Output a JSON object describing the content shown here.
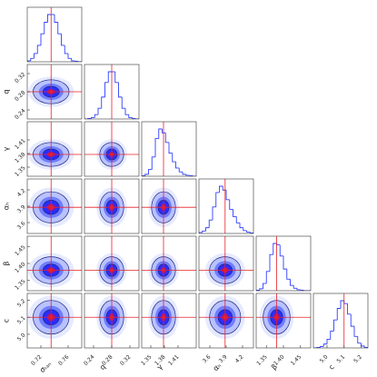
{
  "chart_data": {
    "type": "corner",
    "truth_color": "#e8202a",
    "hist_color": "#3040ff",
    "params": [
      {
        "name": "σₜₐₙ",
        "truth": 0.735,
        "sd": 0.012,
        "xlim": [
          0.7,
          0.78
        ],
        "ticks": [
          0.72,
          0.76
        ],
        "bins": [
          0.7,
          0.705,
          0.71,
          0.715,
          0.72,
          0.725,
          0.73,
          0.735,
          0.74,
          0.745,
          0.75,
          0.755,
          0.76,
          0.765,
          0.77,
          0.775,
          0.78
        ],
        "counts": [
          2,
          7,
          17,
          34,
          58,
          82,
          98,
          98,
          82,
          58,
          34,
          17,
          7,
          2,
          1,
          0
        ]
      },
      {
        "name": "q",
        "truth": 0.28,
        "sd": 0.012,
        "xlim": [
          0.22,
          0.34
        ],
        "ticks": [
          0.24,
          0.28,
          0.32
        ],
        "bins": [
          0.22,
          0.2275,
          0.235,
          0.2425,
          0.25,
          0.2575,
          0.265,
          0.2725,
          0.28,
          0.2875,
          0.295,
          0.3025,
          0.31,
          0.3175,
          0.325,
          0.3325,
          0.34
        ],
        "counts": [
          0,
          1,
          3,
          9,
          22,
          45,
          75,
          97,
          97,
          75,
          45,
          22,
          9,
          3,
          1,
          0
        ]
      },
      {
        "name": "γ",
        "truth": 1.378,
        "sd": 0.012,
        "xlim": [
          1.33,
          1.45
        ],
        "ticks": [
          1.35,
          1.38,
          1.41
        ],
        "bins": [
          1.33,
          1.3375,
          1.345,
          1.3525,
          1.36,
          1.3675,
          1.375,
          1.3825,
          1.39,
          1.3975,
          1.405,
          1.4125,
          1.42,
          1.4275,
          1.435,
          1.4425,
          1.45
        ],
        "counts": [
          1,
          4,
          14,
          40,
          78,
          98,
          90,
          70,
          48,
          30,
          17,
          9,
          4,
          2,
          1,
          0
        ]
      },
      {
        "name": "αₕ",
        "truth": 3.88,
        "sd": 0.13,
        "xlim": [
          3.4,
          4.4
        ],
        "ticks": [
          3.6,
          3.9,
          4.2
        ],
        "bins": [
          3.4,
          3.4625,
          3.525,
          3.5875,
          3.65,
          3.7125,
          3.775,
          3.8375,
          3.9,
          3.9625,
          4.025,
          4.0875,
          4.15,
          4.2125,
          4.275,
          4.3375,
          4.4
        ],
        "counts": [
          2,
          5,
          12,
          28,
          55,
          85,
          98,
          90,
          70,
          50,
          35,
          22,
          12,
          6,
          3,
          1
        ]
      },
      {
        "name": "β",
        "truth": 1.38,
        "sd": 0.018,
        "xlim": [
          1.32,
          1.48
        ],
        "ticks": [
          1.35,
          {
            "value": 1.4,
            "label": "1.40"
          },
          1.45
        ],
        "bins": [
          1.32,
          1.33,
          1.34,
          1.35,
          1.36,
          1.37,
          1.38,
          1.39,
          1.4,
          1.41,
          1.42,
          1.43,
          1.44,
          1.45,
          1.46,
          1.47,
          1.48
        ],
        "counts": [
          1,
          4,
          15,
          40,
          75,
          98,
          95,
          72,
          45,
          24,
          11,
          5,
          2,
          1,
          0,
          0
        ]
      },
      {
        "name": "c",
        "truth": 5.1,
        "sd": 0.045,
        "xlim": [
          4.92,
          5.24
        ],
        "ticks": [
          {
            "value": 5.0,
            "label": "5.0"
          },
          5.1,
          5.2
        ],
        "bins": [
          4.92,
          4.94,
          4.96,
          4.98,
          5.0,
          5.02,
          5.04,
          5.06,
          5.08,
          5.1,
          5.12,
          5.14,
          5.16,
          5.18,
          5.2,
          5.22,
          5.24
        ],
        "counts": [
          0,
          1,
          3,
          8,
          18,
          35,
          58,
          82,
          98,
          92,
          70,
          45,
          24,
          10,
          4,
          1
        ]
      }
    ]
  }
}
